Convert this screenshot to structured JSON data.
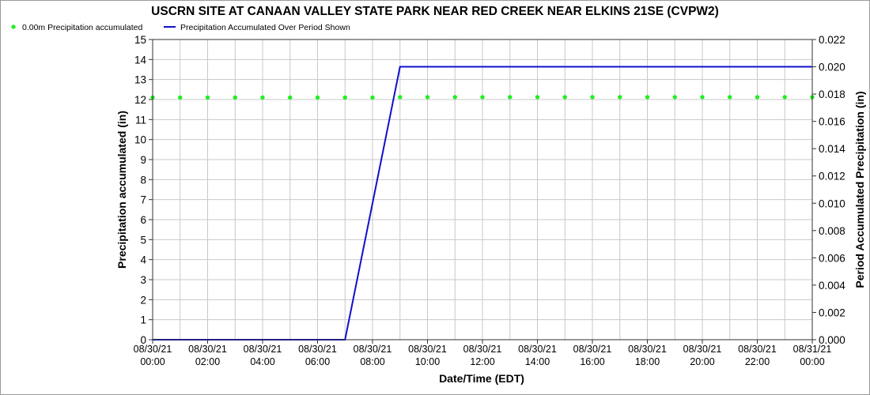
{
  "chart_data": {
    "type": "line",
    "title": "USCRN SITE AT CANAAN VALLEY STATE PARK NEAR RED CREEK NEAR ELKINS 21SE (CVPW2)",
    "xlabel": "Date/Time (EDT)",
    "ylabel_left": "Precipitation accumulated (in)",
    "ylabel_right": "Period Accumulated Precipitation (in)",
    "ylim_left": [
      0,
      15
    ],
    "ylim_right": [
      0,
      0.022
    ],
    "left_ticks": [
      "0",
      "1",
      "2",
      "3",
      "4",
      "5",
      "6",
      "7",
      "8",
      "9",
      "10",
      "11",
      "12",
      "13",
      "14",
      "15"
    ],
    "right_ticks": [
      "0.000",
      "0.002",
      "0.004",
      "0.006",
      "0.008",
      "0.010",
      "0.012",
      "0.014",
      "0.016",
      "0.018",
      "0.020",
      "0.022"
    ],
    "x_range_hours": [
      0,
      24
    ],
    "x_ticks": [
      {
        "date": "08/30/21",
        "time": "00:00",
        "hour": 0
      },
      {
        "date": "08/30/21",
        "time": "02:00",
        "hour": 2
      },
      {
        "date": "08/30/21",
        "time": "04:00",
        "hour": 4
      },
      {
        "date": "08/30/21",
        "time": "06:00",
        "hour": 6
      },
      {
        "date": "08/30/21",
        "time": "08:00",
        "hour": 8
      },
      {
        "date": "08/30/21",
        "time": "10:00",
        "hour": 10
      },
      {
        "date": "08/30/21",
        "time": "12:00",
        "hour": 12
      },
      {
        "date": "08/30/21",
        "time": "14:00",
        "hour": 14
      },
      {
        "date": "08/30/21",
        "time": "16:00",
        "hour": 16
      },
      {
        "date": "08/30/21",
        "time": "18:00",
        "hour": 18
      },
      {
        "date": "08/30/21",
        "time": "20:00",
        "hour": 20
      },
      {
        "date": "08/30/21",
        "time": "22:00",
        "hour": 22
      },
      {
        "date": "08/31/21",
        "time": "00:00",
        "hour": 24
      }
    ],
    "grid": true,
    "legend_position": "top-left",
    "series": [
      {
        "name": "0.00m Precipitation accumulated",
        "axis": "left",
        "style": "markers",
        "color": "#22ee22",
        "x": [
          0,
          1,
          2,
          3,
          4,
          5,
          6,
          7,
          8,
          9,
          10,
          11,
          12,
          13,
          14,
          15,
          16,
          17,
          18,
          19,
          20,
          21,
          22,
          23,
          24
        ],
        "y": [
          12.1,
          12.1,
          12.1,
          12.1,
          12.1,
          12.1,
          12.1,
          12.1,
          12.1,
          12.12,
          12.12,
          12.12,
          12.12,
          12.12,
          12.12,
          12.12,
          12.12,
          12.12,
          12.12,
          12.12,
          12.12,
          12.12,
          12.12,
          12.12,
          12.12
        ]
      },
      {
        "name": "Precipitation Accumulated Over Period Shown",
        "axis": "right",
        "style": "line",
        "color": "#1010cc",
        "x": [
          0,
          7,
          9,
          24
        ],
        "y": [
          0,
          0,
          0.02,
          0.02
        ]
      }
    ]
  }
}
